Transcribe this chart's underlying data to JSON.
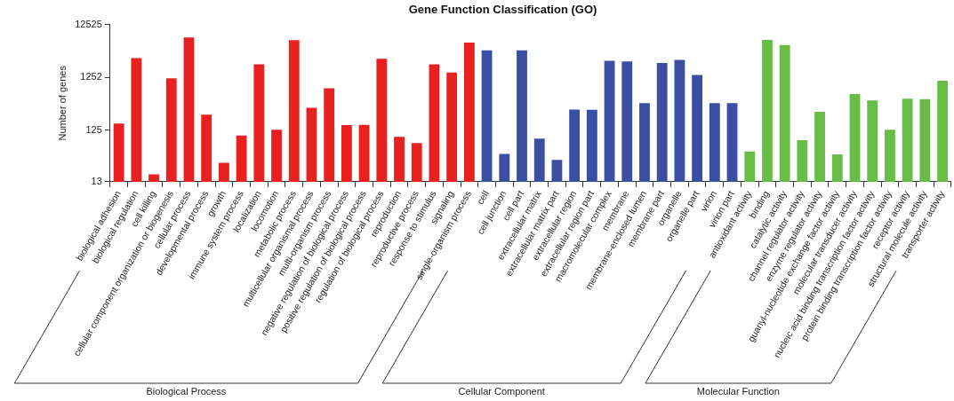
{
  "chart_data": {
    "type": "bar",
    "title": "Gene Function Classification (GO)",
    "ylabel": "Number of genes",
    "categories": [
      "biological adhesion",
      "biological regulation",
      "cell killing",
      "cellular component organization or biogenesis",
      "cellular process",
      "developmental process",
      "growth",
      "immune system process",
      "localization",
      "locomotion",
      "metabolic process",
      "multicellular organismal process",
      "multi-organism process",
      "negative regulation of biological process",
      "positive regulation of biological process",
      "regulation of biological process",
      "reproduction",
      "reproductive process",
      "response to stimulus",
      "signaling",
      "single-organism process",
      "cell",
      "cell junction",
      "cell part",
      "extracellular matrix",
      "extracellular matrix part",
      "extracellular region",
      "extracellular region part",
      "macromolecular complex",
      "membrane",
      "membrane-enclosed lumen",
      "membrane part",
      "organelle",
      "organelle part",
      "virion",
      "virion part",
      "antioxidant activity",
      "binding",
      "catalytic activity",
      "channel regulator activity",
      "enzyme regulator activity",
      "guanyl-nucleotide exchange factor activity",
      "molecular transducer activity",
      "nucleic acid binding transcription factor activity",
      "protein binding transcription factor activity",
      "receptor activity",
      "structural molecule activity",
      "transporter activity"
    ],
    "values": [
      166,
      2900,
      18,
      1200,
      7100,
      245,
      30,
      98,
      2200,
      127,
      6300,
      330,
      770,
      155,
      157,
      2800,
      93,
      71,
      2200,
      1540,
      5700,
      4060,
      44,
      4060,
      86,
      34,
      306,
      303,
      2560,
      2500,
      404,
      2340,
      2670,
      1380,
      404,
      404,
      49,
      6400,
      5100,
      80,
      276,
      43,
      600,
      454,
      126,
      491,
      479,
      1080
    ],
    "colors": [
      "#e8201f",
      "#e8201f",
      "#e8201f",
      "#e8201f",
      "#e8201f",
      "#e8201f",
      "#e8201f",
      "#e8201f",
      "#e8201f",
      "#e8201f",
      "#e8201f",
      "#e8201f",
      "#e8201f",
      "#e8201f",
      "#e8201f",
      "#e8201f",
      "#e8201f",
      "#e8201f",
      "#e8201f",
      "#e8201f",
      "#e8201f",
      "#3a4fa3",
      "#3a4fa3",
      "#3a4fa3",
      "#3a4fa3",
      "#3a4fa3",
      "#3a4fa3",
      "#3a4fa3",
      "#3a4fa3",
      "#3a4fa3",
      "#3a4fa3",
      "#3a4fa3",
      "#3a4fa3",
      "#3a4fa3",
      "#3a4fa3",
      "#3a4fa3",
      "#67bd45",
      "#67bd45",
      "#67bd45",
      "#67bd45",
      "#67bd45",
      "#67bd45",
      "#67bd45",
      "#67bd45",
      "#67bd45",
      "#67bd45",
      "#67bd45",
      "#67bd45"
    ],
    "log": "y",
    "ylim": [
      13,
      12525
    ],
    "yticks": [
      13,
      125,
      1252,
      12525
    ],
    "grid": false,
    "legend": false,
    "annotations": [
      "Biological Process",
      "Cellular Component",
      "Molecular Function"
    ]
  }
}
